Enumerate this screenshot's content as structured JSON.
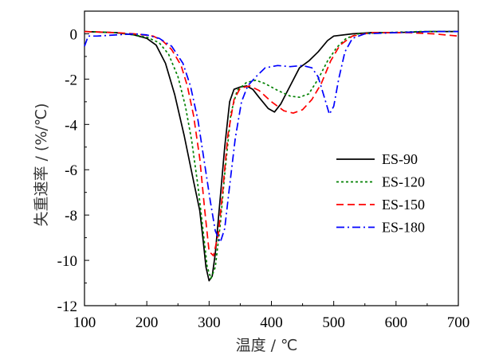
{
  "chart_data": {
    "type": "line",
    "title": "",
    "xlabel": "温度 / ℃",
    "ylabel": "失重速率 / (%/℃)",
    "xlim": [
      100,
      700
    ],
    "ylim": [
      -12,
      1
    ],
    "xticks": [
      100,
      200,
      300,
      400,
      500,
      600,
      700
    ],
    "yticks": [
      0,
      -2,
      -4,
      -6,
      -8,
      -10,
      -12
    ],
    "xtick_labels": [
      "100",
      "200",
      "300",
      "400",
      "500",
      "600",
      "700"
    ],
    "ytick_labels": [
      "0",
      "-2",
      "-4",
      "-6",
      "-8",
      "-10",
      "-12"
    ],
    "grid": false,
    "legend_position": "right-middle",
    "series": [
      {
        "name": "ES-90",
        "color": "#000000",
        "dash": "solid",
        "points": [
          [
            100,
            0.1
          ],
          [
            150,
            0.05
          ],
          [
            180,
            -0.05
          ],
          [
            200,
            -0.2
          ],
          [
            215,
            -0.5
          ],
          [
            230,
            -1.3
          ],
          [
            245,
            -2.7
          ],
          [
            260,
            -4.5
          ],
          [
            275,
            -6.5
          ],
          [
            285,
            -7.8
          ],
          [
            290,
            -9.0
          ],
          [
            295,
            -10.3
          ],
          [
            300,
            -10.9
          ],
          [
            305,
            -10.7
          ],
          [
            310,
            -9.7
          ],
          [
            318,
            -7.2
          ],
          [
            325,
            -5.0
          ],
          [
            333,
            -3.0
          ],
          [
            340,
            -2.45
          ],
          [
            350,
            -2.35
          ],
          [
            360,
            -2.3
          ],
          [
            370,
            -2.45
          ],
          [
            380,
            -2.8
          ],
          [
            395,
            -3.3
          ],
          [
            405,
            -3.45
          ],
          [
            415,
            -3.1
          ],
          [
            430,
            -2.3
          ],
          [
            445,
            -1.5
          ],
          [
            460,
            -1.2
          ],
          [
            475,
            -0.8
          ],
          [
            490,
            -0.3
          ],
          [
            500,
            -0.1
          ],
          [
            530,
            0.0
          ],
          [
            560,
            0.05
          ],
          [
            600,
            0.05
          ],
          [
            650,
            0.1
          ],
          [
            700,
            0.1
          ]
        ]
      },
      {
        "name": "ES-120",
        "color": "#008000",
        "dash": "dotted",
        "points": [
          [
            100,
            0.1
          ],
          [
            150,
            0.05
          ],
          [
            180,
            -0.05
          ],
          [
            200,
            -0.15
          ],
          [
            220,
            -0.4
          ],
          [
            235,
            -0.9
          ],
          [
            250,
            -1.9
          ],
          [
            262,
            -3.2
          ],
          [
            272,
            -4.7
          ],
          [
            282,
            -6.7
          ],
          [
            290,
            -8.6
          ],
          [
            297,
            -10.3
          ],
          [
            303,
            -10.8
          ],
          [
            310,
            -10.3
          ],
          [
            318,
            -8.4
          ],
          [
            325,
            -6.2
          ],
          [
            335,
            -3.5
          ],
          [
            345,
            -2.5
          ],
          [
            360,
            -2.15
          ],
          [
            375,
            -2.05
          ],
          [
            390,
            -2.2
          ],
          [
            410,
            -2.5
          ],
          [
            430,
            -2.75
          ],
          [
            445,
            -2.8
          ],
          [
            460,
            -2.65
          ],
          [
            475,
            -2.0
          ],
          [
            490,
            -1.2
          ],
          [
            505,
            -0.6
          ],
          [
            520,
            -0.2
          ],
          [
            540,
            0.0
          ],
          [
            580,
            0.05
          ],
          [
            640,
            0.1
          ],
          [
            700,
            0.1
          ]
        ]
      },
      {
        "name": "ES-150",
        "color": "#ff0000",
        "dash": "dashed",
        "points": [
          [
            100,
            0.1
          ],
          [
            150,
            0.05
          ],
          [
            180,
            -0.0
          ],
          [
            210,
            -0.1
          ],
          [
            225,
            -0.3
          ],
          [
            240,
            -0.7
          ],
          [
            255,
            -1.4
          ],
          [
            265,
            -2.3
          ],
          [
            275,
            -3.6
          ],
          [
            285,
            -5.5
          ],
          [
            293,
            -7.8
          ],
          [
            300,
            -9.6
          ],
          [
            307,
            -9.8
          ],
          [
            315,
            -8.8
          ],
          [
            322,
            -6.9
          ],
          [
            330,
            -4.5
          ],
          [
            340,
            -2.9
          ],
          [
            350,
            -2.4
          ],
          [
            365,
            -2.3
          ],
          [
            380,
            -2.5
          ],
          [
            400,
            -3.0
          ],
          [
            420,
            -3.4
          ],
          [
            435,
            -3.5
          ],
          [
            450,
            -3.35
          ],
          [
            465,
            -2.9
          ],
          [
            480,
            -2.2
          ],
          [
            495,
            -1.2
          ],
          [
            510,
            -0.5
          ],
          [
            530,
            -0.1
          ],
          [
            560,
            0.05
          ],
          [
            620,
            0.05
          ],
          [
            660,
            0.0
          ],
          [
            700,
            -0.1
          ]
        ]
      },
      {
        "name": "ES-180",
        "color": "#0000ff",
        "dash": "dashdot",
        "points": [
          [
            100,
            -0.55
          ],
          [
            106,
            -0.1
          ],
          [
            120,
            -0.1
          ],
          [
            150,
            -0.05
          ],
          [
            180,
            0.0
          ],
          [
            200,
            -0.05
          ],
          [
            220,
            -0.2
          ],
          [
            240,
            -0.55
          ],
          [
            258,
            -1.3
          ],
          [
            270,
            -2.3
          ],
          [
            282,
            -3.8
          ],
          [
            292,
            -5.6
          ],
          [
            302,
            -7.4
          ],
          [
            310,
            -8.7
          ],
          [
            318,
            -9.2
          ],
          [
            325,
            -8.6
          ],
          [
            333,
            -6.7
          ],
          [
            342,
            -4.6
          ],
          [
            352,
            -3.0
          ],
          [
            362,
            -2.3
          ],
          [
            375,
            -1.9
          ],
          [
            390,
            -1.5
          ],
          [
            410,
            -1.4
          ],
          [
            430,
            -1.45
          ],
          [
            450,
            -1.4
          ],
          [
            465,
            -1.5
          ],
          [
            475,
            -1.9
          ],
          [
            485,
            -2.8
          ],
          [
            493,
            -3.55
          ],
          [
            500,
            -3.2
          ],
          [
            508,
            -2.0
          ],
          [
            518,
            -0.8
          ],
          [
            530,
            -0.2
          ],
          [
            550,
            0.0
          ],
          [
            600,
            0.05
          ],
          [
            660,
            0.1
          ],
          [
            700,
            0.1
          ]
        ]
      }
    ]
  }
}
